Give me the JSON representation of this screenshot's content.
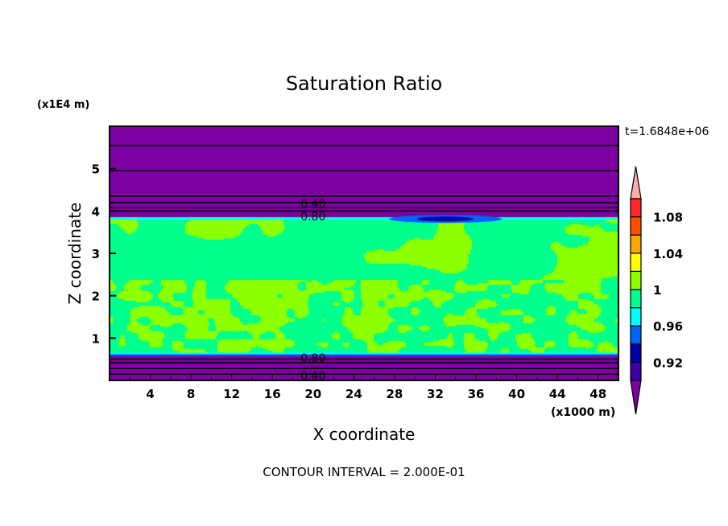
{
  "chart_data": {
    "type": "heatmap",
    "subtype": "filled-contour",
    "title": "Saturation Ratio",
    "xlabel": "X coordinate",
    "ylabel": "Z coordinate",
    "x_unit": "(x1000 m)",
    "y_unit": "(x1E4 m)",
    "xlim": [
      0,
      50
    ],
    "ylim": [
      0,
      6
    ],
    "x_ticks": [
      4,
      8,
      12,
      16,
      20,
      24,
      28,
      32,
      36,
      40,
      44,
      48
    ],
    "y_ticks": [
      1,
      2,
      3,
      4,
      5
    ],
    "time_label": "t=1.6848e+06",
    "footer": "CONTOUR INTERVAL = 2.000E-01",
    "colorbar": {
      "levels": [
        0.9,
        0.92,
        0.94,
        0.96,
        0.98,
        1.0,
        1.02,
        1.04,
        1.06,
        1.08,
        1.1
      ],
      "tick_labels": [
        "0.92",
        "0.96",
        "1",
        "1.04",
        "1.08"
      ],
      "tick_values": [
        0.92,
        0.96,
        1.0,
        1.04,
        1.08
      ],
      "colors": [
        "#3c00a0",
        "#0000a8",
        "#0064ff",
        "#00ffff",
        "#00ff8c",
        "#8cff00",
        "#ffff00",
        "#ffa500",
        "#ff5000",
        "#ff2828"
      ],
      "under_color": "#7d00a0",
      "over_color": "#ffaaaa"
    },
    "contour_labels": [
      {
        "text": "0.40",
        "x": 20,
        "y": 4.2
      },
      {
        "text": "0.80",
        "x": 20,
        "y": 4.05
      },
      {
        "text": "0.80",
        "x": 20,
        "y": 0.55
      },
      {
        "text": "0.40",
        "x": 20,
        "y": 0.13
      }
    ],
    "moist_layer_z": [
      0.6,
      3.85
    ]
  }
}
